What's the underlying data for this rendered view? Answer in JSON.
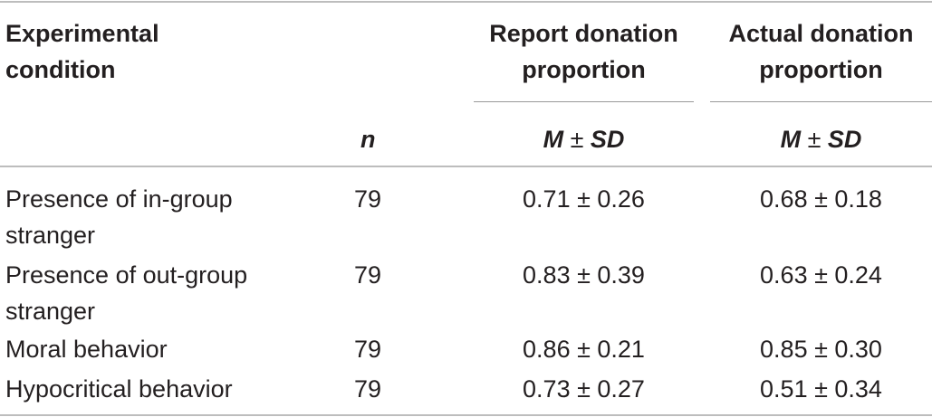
{
  "table": {
    "header": {
      "condition_line1": "Experimental",
      "condition_line2": "condition",
      "report_line1": "Report donation",
      "report_line2": "proportion",
      "actual_line1": "Actual donation",
      "actual_line2": "proportion",
      "n_label": "n",
      "report_stat_m": "M",
      "report_stat_pm": " ± ",
      "report_stat_sd": "SD",
      "actual_stat_m": "M",
      "actual_stat_pm": " ± ",
      "actual_stat_sd": "SD"
    },
    "rows": [
      {
        "condition_line1": "Presence of in-group",
        "condition_line2": "stranger",
        "n": "79",
        "report": "0.71 ± 0.26",
        "actual": "0.68 ± 0.18"
      },
      {
        "condition_line1": "Presence of out-group",
        "condition_line2": "stranger",
        "n": "79",
        "report": "0.83 ± 0.39",
        "actual": "0.63 ± 0.24"
      },
      {
        "condition_line1": "Moral behavior",
        "condition_line2": "",
        "n": "79",
        "report": "0.86 ± 0.21",
        "actual": "0.85 ± 0.30"
      },
      {
        "condition_line1": "Hypocritical behavior",
        "condition_line2": "",
        "n": "79",
        "report": "0.73 ± 0.27",
        "actual": "0.51 ± 0.34"
      }
    ]
  }
}
